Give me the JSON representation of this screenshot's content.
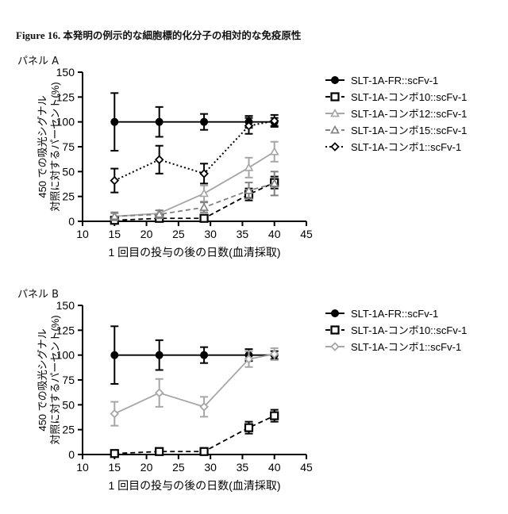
{
  "figure": {
    "title_en": "Figure 16.",
    "title_jp": "本発明の例示的な細胞標的化分子の相対的な免疫原性"
  },
  "chart_data": [
    {
      "panel": "パネル A",
      "type": "line",
      "xlabel": "1 回目の投与の後の日数(血清採取)",
      "ylabel_line1": "450 での吸光シグナル",
      "ylabel_line2": "対照に対するパーセント(%)",
      "xlim": [
        10,
        45
      ],
      "ylim": [
        0,
        150
      ],
      "xticks": [
        10,
        15,
        20,
        25,
        30,
        35,
        40,
        45
      ],
      "yticks": [
        0,
        25,
        50,
        75,
        100,
        125,
        150
      ],
      "legend_position": "right",
      "series": [
        {
          "name": "SLT-1A-FR::scFv-1",
          "style": "solid",
          "marker": "circle",
          "color": "#000000",
          "x": [
            15,
            22,
            29,
            36,
            40
          ],
          "y": [
            100,
            100,
            100,
            100,
            100
          ],
          "err": [
            29,
            15,
            8,
            6,
            4
          ]
        },
        {
          "name": "SLT-1A-コンボ10::scFv-1",
          "style": "dash",
          "marker": "square",
          "color": "#000000",
          "x": [
            15,
            22,
            29,
            36,
            40
          ],
          "y": [
            1,
            3,
            3,
            27,
            39
          ],
          "err": [
            1,
            1,
            1,
            6,
            6
          ]
        },
        {
          "name": "SLT-1A-コンボ12::scFv-1",
          "style": "solid",
          "marker": "triangle",
          "color": "#a6a6a6",
          "x": [
            15,
            22,
            29,
            36,
            40
          ],
          "y": [
            5,
            8,
            28,
            54,
            70
          ],
          "err": [
            3,
            3,
            8,
            10,
            10
          ]
        },
        {
          "name": "SLT-1A-コンボ15::scFv-1",
          "style": "dash",
          "marker": "triangle",
          "color": "#808080",
          "x": [
            15,
            22,
            29,
            36,
            40
          ],
          "y": [
            5,
            7,
            14,
            31,
            38
          ],
          "err": [
            4,
            4,
            5,
            8,
            12
          ]
        },
        {
          "name": "SLT-1A-コンボ1::scFv-1",
          "style": "dot",
          "marker": "diamond",
          "color": "#000000",
          "x": [
            15,
            22,
            29,
            36,
            40
          ],
          "y": [
            41,
            62,
            48,
            96,
            101
          ],
          "err": [
            12,
            14,
            10,
            8,
            6
          ]
        }
      ]
    },
    {
      "panel": "パネル B",
      "type": "line",
      "xlabel": "1 回目の投与の後の日数(血清採取)",
      "ylabel_line1": "450 での吸光シグナル",
      "ylabel_line2": "対照に対するパーセント(%)",
      "xlim": [
        10,
        45
      ],
      "ylim": [
        0,
        150
      ],
      "xticks": [
        10,
        15,
        20,
        25,
        30,
        35,
        40,
        45
      ],
      "yticks": [
        0,
        25,
        50,
        75,
        100,
        125,
        150
      ],
      "legend_position": "right",
      "series": [
        {
          "name": "SLT-1A-FR::scFv-1",
          "style": "solid",
          "marker": "circle",
          "color": "#000000",
          "x": [
            15,
            22,
            29,
            36,
            40
          ],
          "y": [
            100,
            100,
            100,
            100,
            100
          ],
          "err": [
            29,
            15,
            8,
            6,
            4
          ]
        },
        {
          "name": "SLT-1A-コンボ10::scFv-1",
          "style": "dash",
          "marker": "square",
          "color": "#000000",
          "x": [
            15,
            22,
            29,
            36,
            40
          ],
          "y": [
            1,
            3,
            3,
            27,
            39
          ],
          "err": [
            1,
            1,
            1,
            6,
            6
          ]
        },
        {
          "name": "SLT-1A-コンボ1::scFv-1",
          "style": "solid",
          "marker": "diamond",
          "color": "#a6a6a6",
          "x": [
            15,
            22,
            29,
            36,
            40
          ],
          "y": [
            41,
            62,
            48,
            96,
            101
          ],
          "err": [
            12,
            14,
            10,
            8,
            6
          ]
        }
      ]
    }
  ]
}
